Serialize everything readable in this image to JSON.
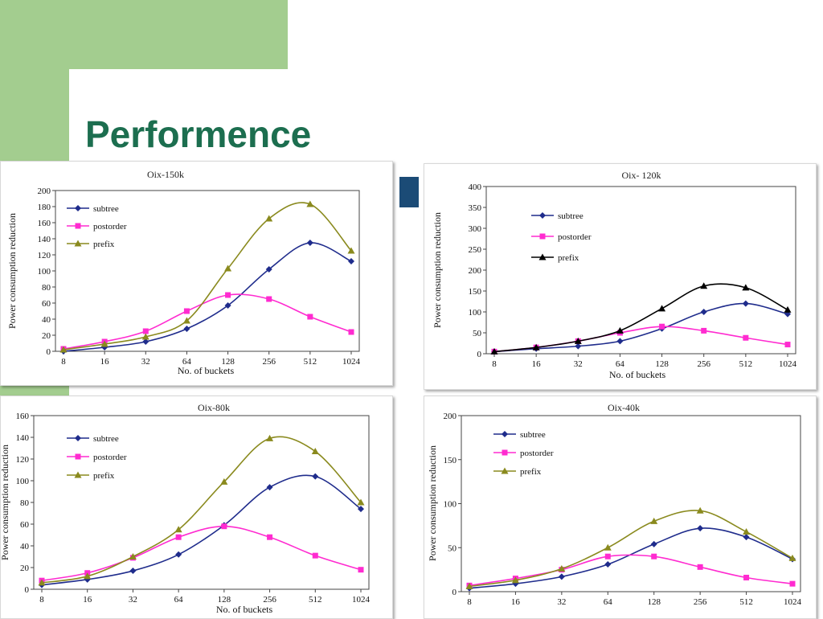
{
  "slide": {
    "title": "Performence"
  },
  "chart_data": [
    {
      "type": "line",
      "title": "Oix-150k",
      "xlabel": "No. of buckets",
      "ylabel": "Power consumption reduction",
      "categories": [
        "8",
        "16",
        "32",
        "64",
        "128",
        "256",
        "512",
        "1024"
      ],
      "ylim": [
        0,
        200
      ],
      "yticks": [
        0,
        20,
        40,
        60,
        80,
        100,
        120,
        140,
        160,
        180,
        200
      ],
      "legend": "top-left",
      "series": [
        {
          "name": "subtree",
          "color": "#1f2c8c",
          "marker": "diamond",
          "values": [
            0,
            5,
            12,
            28,
            57,
            102,
            135,
            112
          ]
        },
        {
          "name": "postorder",
          "color": "#ff2bd0",
          "marker": "square",
          "values": [
            3,
            12,
            25,
            50,
            70,
            65,
            43,
            24
          ]
        },
        {
          "name": "prefix",
          "color": "#8a8a1e",
          "marker": "triangle",
          "values": [
            2,
            9,
            18,
            38,
            103,
            165,
            183,
            125
          ]
        }
      ]
    },
    {
      "type": "line",
      "title": "Oix- 120k",
      "xlabel": "No. of buckets",
      "ylabel": "Power consumption reduction",
      "categories": [
        "8",
        "16",
        "32",
        "64",
        "128",
        "256",
        "512",
        "1024"
      ],
      "ylim": [
        0,
        400
      ],
      "yticks": [
        0,
        50,
        100,
        150,
        200,
        250,
        300,
        350,
        400
      ],
      "legend": "top-left",
      "series": [
        {
          "name": "subtree",
          "color": "#1f2c8c",
          "marker": "diamond",
          "values": [
            5,
            12,
            18,
            30,
            60,
            100,
            120,
            95
          ]
        },
        {
          "name": "postorder",
          "color": "#ff2bd0",
          "marker": "square",
          "values": [
            5,
            15,
            30,
            50,
            65,
            55,
            38,
            22
          ]
        },
        {
          "name": "prefix",
          "color": "#000000",
          "marker": "triangle",
          "values": [
            5,
            15,
            30,
            55,
            108,
            162,
            158,
            105
          ]
        }
      ]
    },
    {
      "type": "line",
      "title": "Oix-80k",
      "xlabel": "No. of buckets",
      "ylabel": "Power consumption reduction",
      "categories": [
        "8",
        "16",
        "32",
        "64",
        "128",
        "256",
        "512",
        "1024"
      ],
      "ylim": [
        0,
        160
      ],
      "yticks": [
        0,
        20,
        40,
        60,
        80,
        100,
        120,
        140,
        160
      ],
      "legend": "top-left",
      "series": [
        {
          "name": "subtree",
          "color": "#1f2c8c",
          "marker": "diamond",
          "values": [
            4,
            9,
            17,
            32,
            59,
            94,
            104,
            74
          ]
        },
        {
          "name": "postorder",
          "color": "#ff2bd0",
          "marker": "square",
          "values": [
            8,
            15,
            29,
            48,
            58,
            48,
            31,
            18
          ]
        },
        {
          "name": "prefix",
          "color": "#8a8a1e",
          "marker": "triangle",
          "values": [
            6,
            12,
            30,
            55,
            99,
            139,
            127,
            80
          ]
        }
      ]
    },
    {
      "type": "line",
      "title": "Oix-40k",
      "xlabel": "",
      "ylabel": "Power consumption reduction",
      "categories": [
        "8",
        "16",
        "32",
        "64",
        "128",
        "256",
        "512",
        "1024"
      ],
      "ylim": [
        0,
        200
      ],
      "yticks": [
        0,
        50,
        100,
        150,
        200
      ],
      "legend": "top-left",
      "series": [
        {
          "name": "subtree",
          "color": "#1f2c8c",
          "marker": "diamond",
          "values": [
            4,
            9,
            17,
            31,
            54,
            72,
            62,
            37
          ]
        },
        {
          "name": "postorder",
          "color": "#ff2bd0",
          "marker": "square",
          "values": [
            7,
            15,
            25,
            40,
            40,
            28,
            16,
            9
          ]
        },
        {
          "name": "prefix",
          "color": "#8a8a1e",
          "marker": "triangle",
          "values": [
            6,
            13,
            26,
            50,
            80,
            92,
            68,
            38
          ]
        }
      ]
    }
  ]
}
